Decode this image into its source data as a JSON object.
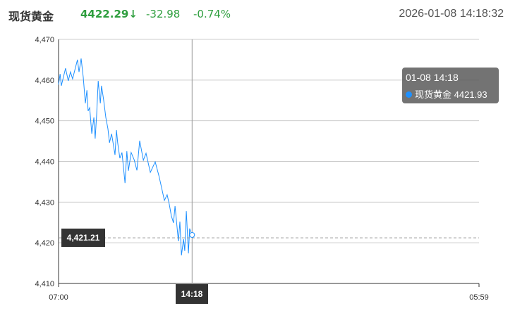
{
  "header": {
    "name": "现货黄金",
    "price": "4422.29",
    "arrow": "↓",
    "change": "-32.98",
    "change_pct": "-0.74%",
    "datetime": "2026-01-08 14:18:32"
  },
  "colors": {
    "line": "#1e90ff",
    "down": "#2e9e3e",
    "grid": "#cccccc"
  },
  "crosshair": {
    "y_value": "4,421.21",
    "x_time": "14:18"
  },
  "tooltip": {
    "time": "01-08 14:18",
    "series": "现货黄金",
    "value": "4421.93"
  },
  "chart_data": {
    "type": "line",
    "title": "",
    "ylim": [
      4410,
      4470
    ],
    "yticks": [
      "4,410",
      "4,420",
      "4,430",
      "4,440",
      "4,450",
      "4,460",
      "4,470"
    ],
    "xlim": [
      "07:00",
      "05:59"
    ],
    "xticks": [
      "07:00",
      "05:59"
    ],
    "grid": true,
    "series": [
      {
        "x": [
          "07:00",
          "07:05",
          "07:09",
          "07:23",
          "07:32",
          "07:39",
          "07:46",
          "08:02",
          "08:07",
          "08:14",
          "08:21",
          "08:28",
          "08:33",
          "08:37",
          "08:42",
          "08:49",
          "08:56",
          "09:00",
          "09:05",
          "09:10",
          "09:17",
          "09:21",
          "09:28",
          "09:35",
          "09:42",
          "09:47",
          "09:54",
          "10:05",
          "10:10",
          "10:14",
          "10:21",
          "10:28",
          "10:38",
          "10:44",
          "10:49",
          "10:58",
          "11:08",
          "11:17",
          "11:26",
          "11:38",
          "11:47",
          "12:01",
          "12:17",
          "12:29",
          "12:36",
          "12:47",
          "12:56",
          "13:03",
          "13:10",
          "13:17",
          "13:22",
          "13:33",
          "13:38",
          "13:43",
          "13:50",
          "13:54",
          "13:59",
          "14:06",
          "14:10",
          "14:18"
        ],
        "values": [
          4458.9,
          4461.5,
          4458.6,
          4462.9,
          4459.8,
          4462.0,
          4460.3,
          4465.0,
          4462.0,
          4465.3,
          4460.7,
          4454.3,
          4457.5,
          4452.4,
          4453.2,
          4446.8,
          4450.8,
          4445.6,
          4451.5,
          4459.8,
          4454.3,
          4458.6,
          4455.0,
          4450.8,
          4448.0,
          4444.6,
          4446.8,
          4441.6,
          4447.7,
          4444.6,
          4440.8,
          4442.2,
          4434.7,
          4442.5,
          4437.7,
          4442.2,
          4440.4,
          4437.8,
          4445.1,
          4440.3,
          4442.0,
          4437.3,
          4439.9,
          4436.5,
          4434.2,
          4430.4,
          4431.8,
          4429.5,
          4426.6,
          4424.9,
          4429.0,
          4420.4,
          4425.2,
          4416.9,
          4420.9,
          4418.0,
          4427.8,
          4417.4,
          4423.5,
          4421.93
        ]
      }
    ]
  }
}
